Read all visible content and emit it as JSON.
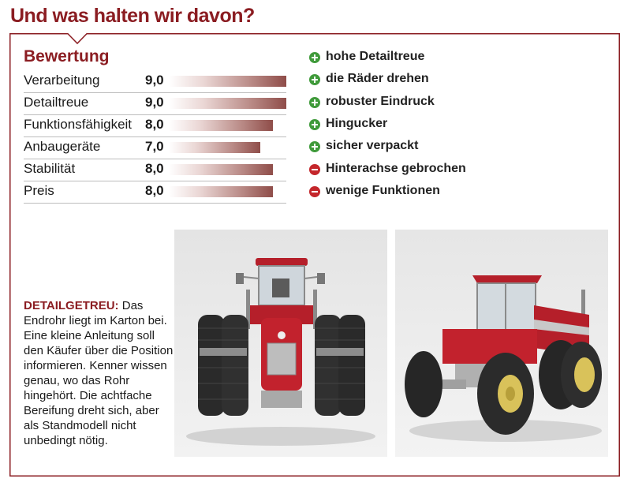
{
  "headline": "Und was halten wir davon?",
  "rating": {
    "title": "Bewertung",
    "max": 10,
    "items": [
      {
        "label": "Verarbeitung",
        "value": "9,0",
        "score": 9.0
      },
      {
        "label": "Detailtreue",
        "value": "9,0",
        "score": 9.0
      },
      {
        "label": "Funktionsfähigkeit",
        "value": "8,0",
        "score": 8.0
      },
      {
        "label": "Anbaugeräte",
        "value": "7,0",
        "score": 7.0
      },
      {
        "label": "Stabilität",
        "value": "8,0",
        "score": 8.0
      },
      {
        "label": "Preis",
        "value": "8,0",
        "score": 8.0
      }
    ]
  },
  "pros_cons": [
    {
      "type": "plus",
      "icon": "plus-circle-icon",
      "text": "hohe Detailtreue"
    },
    {
      "type": "plus",
      "icon": "plus-circle-icon",
      "text": "die Räder drehen"
    },
    {
      "type": "plus",
      "icon": "plus-circle-icon",
      "text": "robuster Eindruck"
    },
    {
      "type": "plus",
      "icon": "plus-circle-icon",
      "text": "Hingucker"
    },
    {
      "type": "plus",
      "icon": "plus-circle-icon",
      "text": "sicher verpackt"
    },
    {
      "type": "minus",
      "icon": "minus-circle-icon",
      "text": "Hinterachse gebrochen"
    },
    {
      "type": "minus",
      "icon": "minus-circle-icon",
      "text": "wenige Funktionen"
    }
  ],
  "caption": {
    "highlight": "DETAILGETREU:",
    "text": " Das Endrohr liegt im Karton bei. Eine kleine Anleitung soll den Käufer über die Position informieren. Kenner wissen genau, wo das Rohr hingehört. Die achtfache Bereifung dreht sich, aber als Standmodell nicht unbedingt nötig."
  },
  "colors": {
    "brand_red": "#8b1d22",
    "plus_green": "#3f9a3a",
    "minus_red": "#c4262b",
    "tractor_red": "#b51f2a"
  }
}
